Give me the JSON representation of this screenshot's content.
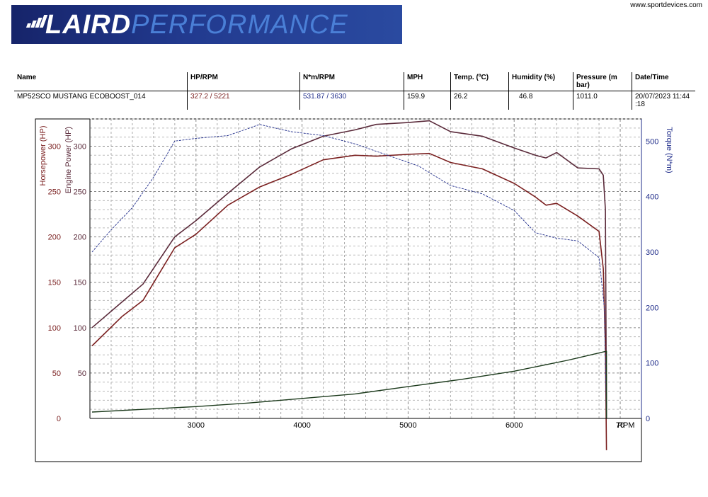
{
  "header": {
    "brand_strong": "LAIRD",
    "brand_light": "PERFORMANCE",
    "website": "www.sportdevices.com"
  },
  "info_table": {
    "columns": [
      "Name",
      "HP/RPM",
      "N*m/RPM",
      "MPH",
      "Temp. (ºC)",
      "Humidity (%)",
      "Pressure (m bar)",
      "Date/Time"
    ],
    "row": {
      "name": "MP52SCO MUSTANG ECOBOOST_014",
      "hp_rpm": "327.2 / 5221",
      "nm_rpm": "531.87 / 3630",
      "mph": "159.9",
      "temp": "26.2",
      "humidity": "46.8",
      "pressure": "1011.0",
      "datetime": "20/07/2023 11:44 :18"
    }
  },
  "colors": {
    "horsepower": "#7a1f1f",
    "engine_power": "#5a2a3a",
    "torque": "#1f2c8a",
    "speed": "#1c3a1c"
  },
  "chart_data": {
    "type": "line",
    "x_axis": {
      "label": "RPM",
      "ticks": [
        "3000",
        "4000",
        "5000",
        "6000",
        "70"
      ],
      "range": [
        2000,
        7200
      ]
    },
    "y_left": {
      "label_outer": "Horsepower (HP)",
      "label_inner": "Engine Power (HP)",
      "ticks_outer": [
        "0",
        "50",
        "100",
        "150",
        "200",
        "250",
        "300"
      ],
      "ticks_inner": [
        "50",
        "100",
        "150",
        "200",
        "250",
        "300"
      ],
      "range": [
        0,
        330
      ]
    },
    "y_right": {
      "label": "Torque (N*m)",
      "ticks": [
        "0",
        "100",
        "200",
        "300",
        "400",
        "500"
      ],
      "range": [
        0,
        540
      ]
    },
    "grid": true,
    "series": [
      {
        "key": "engine_power",
        "axis": "hp",
        "x": [
          2020,
          2300,
          2500,
          2800,
          3000,
          3300,
          3600,
          3900,
          4200,
          4500,
          4700,
          5000,
          5200,
          5400,
          5700,
          6000,
          6200,
          6300,
          6400,
          6600,
          6800,
          6840,
          6860,
          6870
        ],
        "y": [
          100,
          128,
          148,
          200,
          218,
          248,
          277,
          297,
          311,
          318,
          324,
          326,
          328,
          316,
          311,
          298,
          290,
          287,
          293,
          276,
          275,
          268,
          230,
          0
        ]
      },
      {
        "key": "horsepower",
        "axis": "hp",
        "x": [
          2020,
          2300,
          2500,
          2800,
          3000,
          3300,
          3600,
          3900,
          4200,
          4500,
          4700,
          5000,
          5200,
          5400,
          5700,
          6000,
          6200,
          6300,
          6400,
          6600,
          6800,
          6840,
          6860,
          6870
        ],
        "y": [
          80,
          112,
          130,
          188,
          203,
          235,
          255,
          269,
          285,
          290,
          289,
          291,
          292,
          282,
          275,
          259,
          244,
          235,
          237,
          223,
          206,
          165,
          80,
          -35
        ]
      },
      {
        "key": "torque",
        "axis": "torque",
        "x": [
          2020,
          2200,
          2400,
          2600,
          2800,
          3000,
          3300,
          3600,
          3900,
          4200,
          4500,
          4800,
          5100,
          5400,
          5700,
          6000,
          6200,
          6400,
          6600,
          6800,
          6850,
          6870
        ],
        "y": [
          300,
          340,
          380,
          435,
          500,
          505,
          510,
          530,
          517,
          510,
          495,
          475,
          455,
          420,
          405,
          375,
          335,
          325,
          320,
          290,
          200,
          0
        ]
      },
      {
        "key": "speed",
        "axis": "hp",
        "x": [
          2020,
          2500,
          3000,
          3500,
          4000,
          4500,
          5000,
          5500,
          6000,
          6500,
          6870,
          6870
        ],
        "y": [
          7,
          10,
          13,
          17,
          22,
          27,
          35,
          43,
          52,
          64,
          74,
          0
        ]
      }
    ]
  }
}
